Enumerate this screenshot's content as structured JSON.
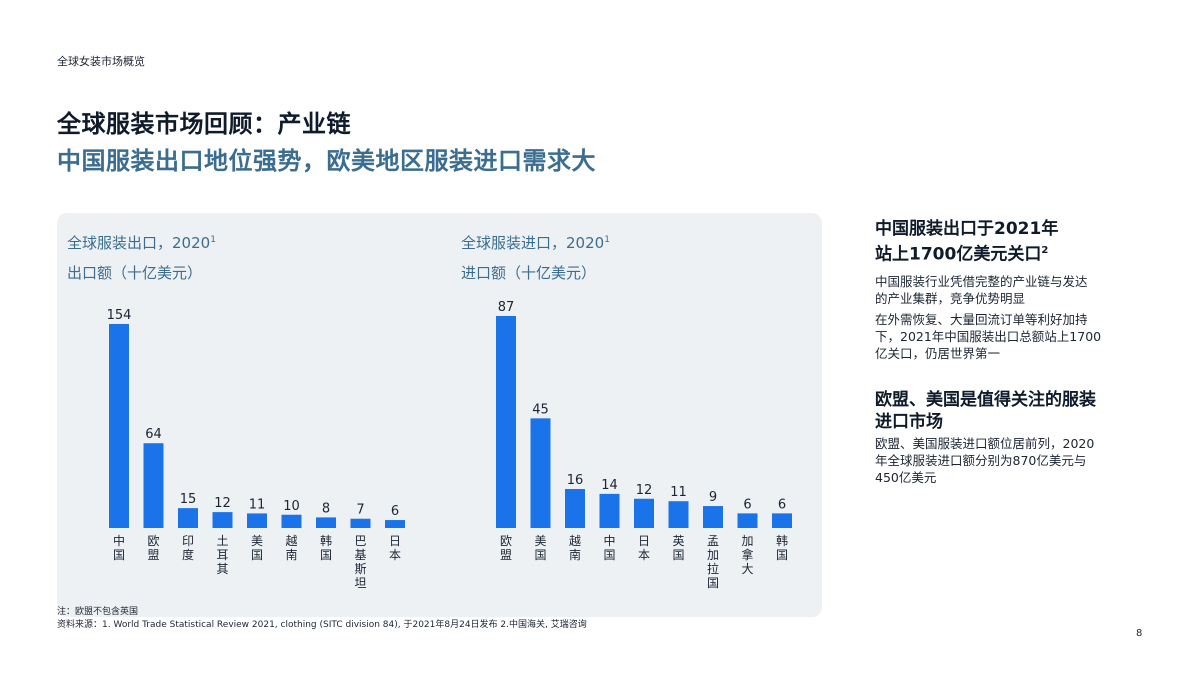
{
  "header": {
    "section": "全球女装市场概览",
    "title_line1": "全球服装市场回顾：产业链",
    "title_line2": "中国服装出口地位强势，欧美地区服装进口需求大"
  },
  "chart_data": [
    {
      "type": "bar",
      "title": "全球服装出口，2020",
      "title_sup": "1",
      "ylabel": "出口额（十亿美元）",
      "categories": [
        "中国",
        "欧盟",
        "印度",
        "土耳其",
        "美国",
        "越南",
        "韩国",
        "巴基斯坦",
        "日本"
      ],
      "values": [
        154,
        64,
        15,
        12,
        11,
        10,
        8,
        7,
        6
      ],
      "color": "#1a73e8"
    },
    {
      "type": "bar",
      "title": "全球服装进口，2020",
      "title_sup": "1",
      "ylabel": "进口额（十亿美元）",
      "categories": [
        "欧盟",
        "美国",
        "越南",
        "中国",
        "日本",
        "英国",
        "孟加拉国",
        "加拿大",
        "韩国"
      ],
      "values": [
        87,
        45,
        16,
        14,
        12,
        11,
        9,
        6,
        6
      ],
      "color": "#1a73e8"
    }
  ],
  "sidebar": {
    "block1": {
      "heading_line1": "中国服装出口于2021年",
      "heading_line2": "站上1700亿美元关口",
      "heading_sup": "2",
      "para1_line1": "中国服装行业凭借完整的产业链与发达",
      "para1_line2": "的产业集群，竞争优势明显",
      "para2_line1": "在外需恢复、大量回流订单等利好加持",
      "para2_line2": "下，2021年中国服装出口总额站上1700",
      "para2_line3": "亿关口，仍居世界第一"
    },
    "block2": {
      "heading_line1": "欧盟、美国是值得关注的服装",
      "heading_line2": "进口市场",
      "para_line1": "欧盟、美国服装进口额位居前列，2020",
      "para_line2": "年全球服装进口额分别为870亿美元与",
      "para_line3": "450亿美元"
    }
  },
  "footnotes": {
    "note": "注：欧盟不包含英国",
    "source": "资料来源：1. World Trade Statistical Review 2021, clothing (SITC division 84), 于2021年8月24日发布 2.中国海关, 艾瑞咨询"
  },
  "page_number": "8"
}
